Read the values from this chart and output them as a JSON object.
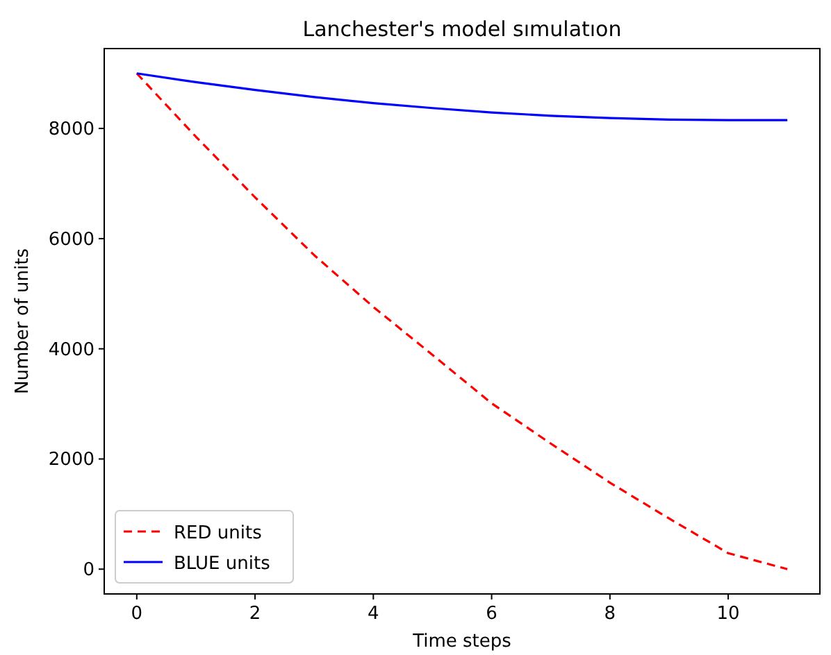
{
  "chart_data": {
    "type": "line",
    "title": "Lanchester's model sımulatıon",
    "xlabel": "Time steps",
    "ylabel": "Number of units",
    "x": [
      0,
      1,
      2,
      3,
      4,
      5,
      6,
      7,
      8,
      9,
      10,
      11
    ],
    "series": [
      {
        "name": "RED units",
        "color": "#ff0000",
        "line_style": "dashed",
        "values": [
          9000,
          7850,
          6750,
          5700,
          4760,
          3890,
          3010,
          2280,
          1570,
          920,
          290,
          0
        ]
      },
      {
        "name": "BLUE units",
        "color": "#0000ff",
        "line_style": "solid",
        "values": [
          9000,
          8840,
          8700,
          8570,
          8460,
          8370,
          8290,
          8230,
          8190,
          8160,
          8150,
          8150
        ]
      }
    ],
    "xlim": [
      -0.55,
      11.55
    ],
    "ylim": [
      -450,
      9450
    ],
    "xticks": [
      0,
      2,
      4,
      6,
      8,
      10
    ],
    "yticks": [
      0,
      2000,
      4000,
      6000,
      8000
    ],
    "grid": false,
    "legend": "bottom left"
  }
}
